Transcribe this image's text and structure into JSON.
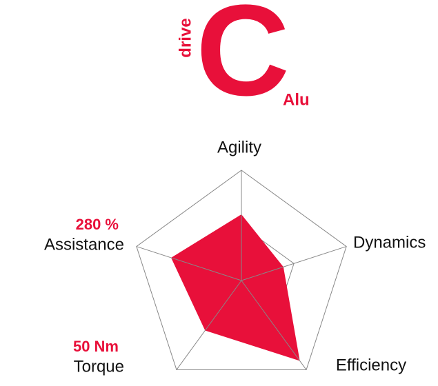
{
  "logo": {
    "prefix": "drive",
    "letter": "C",
    "suffix": "Alu"
  },
  "chart_data": {
    "type": "radar",
    "categories": [
      "Agility",
      "Dynamics",
      "Efficiency",
      "Torque",
      "Assistance"
    ],
    "axis_notes": [
      null,
      null,
      null,
      "50 Nm",
      "280 %"
    ],
    "series": [
      {
        "color": "#e8103a",
        "values": [
          6,
          4,
          9,
          5.6,
          6.7
        ]
      }
    ],
    "rlim": [
      0,
      10
    ],
    "rticks": [
      5,
      10
    ],
    "grid": true
  }
}
